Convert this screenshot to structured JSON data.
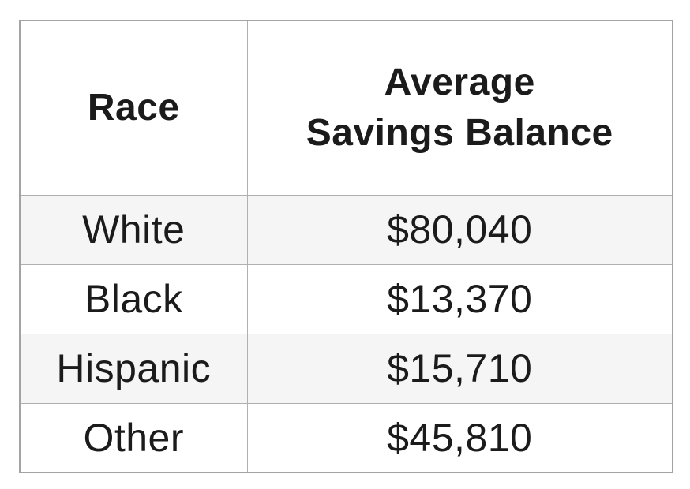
{
  "chart_data": {
    "type": "table",
    "columns": [
      "Race",
      "Average Savings Balance"
    ],
    "categories": [
      "White",
      "Black",
      "Hispanic",
      "Other"
    ],
    "values": [
      80040,
      13370,
      15710,
      45810
    ],
    "value_format": "USD",
    "rows": [
      [
        "White",
        "$80,040"
      ],
      [
        "Black",
        "$13,370"
      ],
      [
        "Hispanic",
        "$15,710"
      ],
      [
        "Other",
        "$45,810"
      ]
    ]
  },
  "table": {
    "headers": {
      "race": "Race",
      "balance": "Average\nSavings Balance"
    },
    "rows": [
      {
        "race": "White",
        "balance": "$80,040"
      },
      {
        "race": "Black",
        "balance": "$13,370"
      },
      {
        "race": "Hispanic",
        "balance": "$15,710"
      },
      {
        "race": "Other",
        "balance": "$45,810"
      }
    ]
  },
  "colors": {
    "row_shaded": "#f5f5f5",
    "row_plain": "#ffffff",
    "border": "#a9a9a9",
    "text": "#1b1b1b",
    "background": "#ffffff"
  }
}
